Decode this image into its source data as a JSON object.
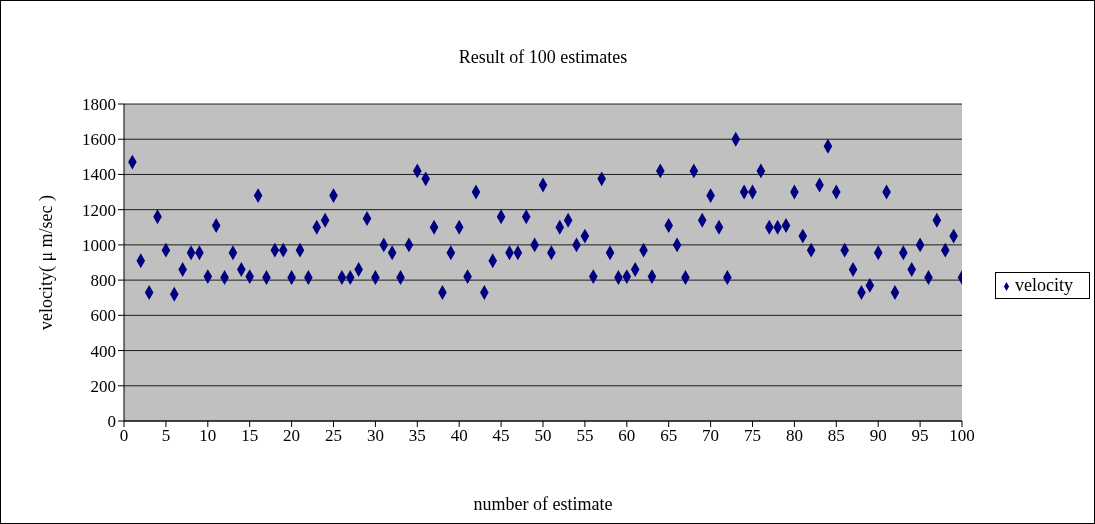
{
  "chart_data": {
    "type": "scatter",
    "title": "Result of 100 estimates",
    "xlabel": "number of estimate",
    "ylabel": "velocity( μ m/sec )",
    "x": [
      1,
      2,
      3,
      4,
      5,
      6,
      7,
      8,
      9,
      10,
      11,
      12,
      13,
      14,
      15,
      16,
      17,
      18,
      19,
      20,
      21,
      22,
      23,
      24,
      25,
      26,
      27,
      28,
      29,
      30,
      31,
      32,
      33,
      34,
      35,
      36,
      37,
      38,
      39,
      40,
      41,
      42,
      43,
      44,
      45,
      46,
      47,
      48,
      49,
      50,
      51,
      52,
      53,
      54,
      55,
      56,
      57,
      58,
      59,
      60,
      61,
      62,
      63,
      64,
      65,
      66,
      67,
      68,
      69,
      70,
      71,
      72,
      73,
      74,
      75,
      76,
      77,
      78,
      79,
      80,
      81,
      82,
      83,
      84,
      85,
      86,
      87,
      88,
      89,
      90,
      91,
      92,
      93,
      94,
      95,
      96,
      97,
      98,
      99,
      100
    ],
    "series": [
      {
        "name": "velocity",
        "color": "#000080",
        "values": [
          1470,
          910,
          730,
          1160,
          970,
          720,
          860,
          955,
          955,
          820,
          1110,
          815,
          955,
          860,
          820,
          1280,
          815,
          970,
          970,
          815,
          970,
          815,
          1100,
          1140,
          1280,
          815,
          815,
          860,
          1150,
          815,
          1000,
          955,
          815,
          1000,
          1420,
          1375,
          1100,
          730,
          955,
          1100,
          820,
          1300,
          730,
          910,
          1160,
          955,
          955,
          1160,
          1000,
          1340,
          955,
          1100,
          1140,
          1000,
          1050,
          820,
          1375,
          955,
          815,
          820,
          860,
          970,
          820,
          1420,
          1110,
          1000,
          815,
          1420,
          1140,
          1280,
          1100,
          815,
          1600,
          1300,
          1300,
          1420,
          1100,
          1100,
          1110,
          1300,
          1050,
          970,
          1340,
          1560,
          1300,
          970,
          860,
          730,
          770,
          955,
          1300,
          730,
          955,
          860,
          1000,
          815,
          1140,
          970,
          1050,
          815
        ]
      }
    ],
    "xlim": [
      0,
      100
    ],
    "xticks": [
      0,
      5,
      10,
      15,
      20,
      25,
      30,
      35,
      40,
      45,
      50,
      55,
      60,
      65,
      70,
      75,
      80,
      85,
      90,
      95,
      100
    ],
    "ylim": [
      0,
      1800
    ],
    "yticks": [
      0,
      200,
      400,
      600,
      800,
      1000,
      1200,
      1400,
      1600,
      1800
    ],
    "grid": "y",
    "legend": "right",
    "marker": "diamond"
  }
}
